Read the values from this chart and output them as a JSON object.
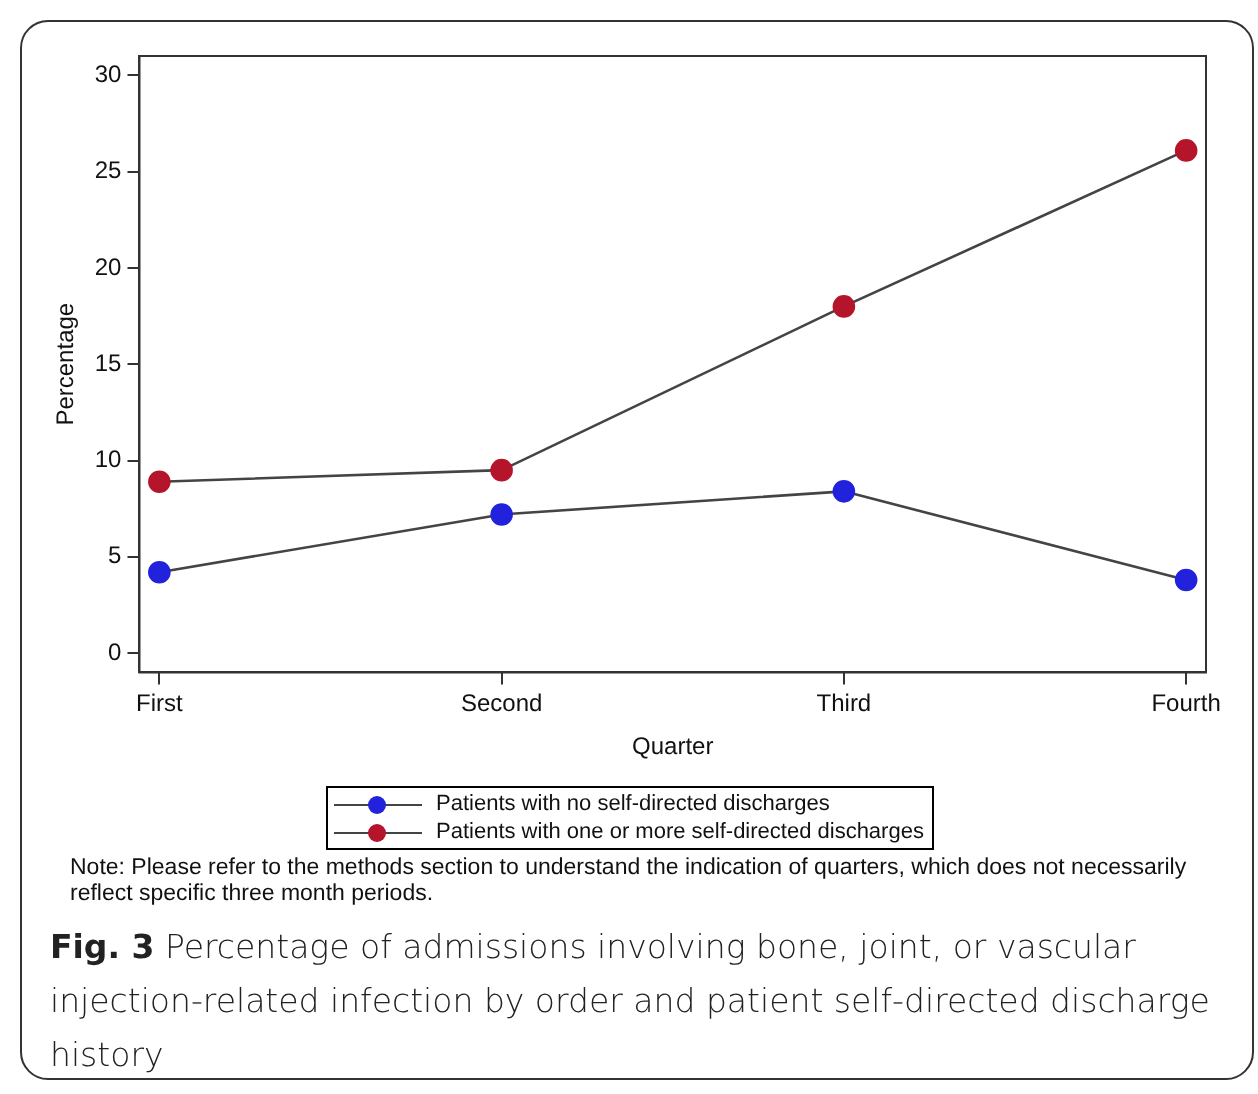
{
  "chart_data": {
    "type": "line",
    "xlabel": "Quarter",
    "ylabel": "Percentage",
    "categories": [
      "First",
      "Second",
      "Third",
      "Fourth"
    ],
    "series": [
      {
        "name": "Patients with no self-directed discharges",
        "color": "#2222dd",
        "values": [
          4.2,
          7.2,
          8.4,
          3.8
        ]
      },
      {
        "name": "Patients with one or more self-directed discharges",
        "color": "#b5152b",
        "values": [
          8.9,
          9.5,
          18.0,
          26.1
        ]
      }
    ],
    "ylim": [
      -1,
      31
    ],
    "yticks": [
      0,
      5,
      10,
      15,
      20,
      25,
      30
    ],
    "grid": false,
    "legend": "bottom",
    "marker": "circle",
    "line_style": "solid",
    "annotations": [
      "Note: Please refer to the methods section to understand the indication of quarters, which does not necessarily reflect specific three month periods."
    ],
    "title": "Fig. 3 Percentage of admissions involving bone, joint, or vascular injection-related infection by order and patient self-directed discharge history"
  }
}
